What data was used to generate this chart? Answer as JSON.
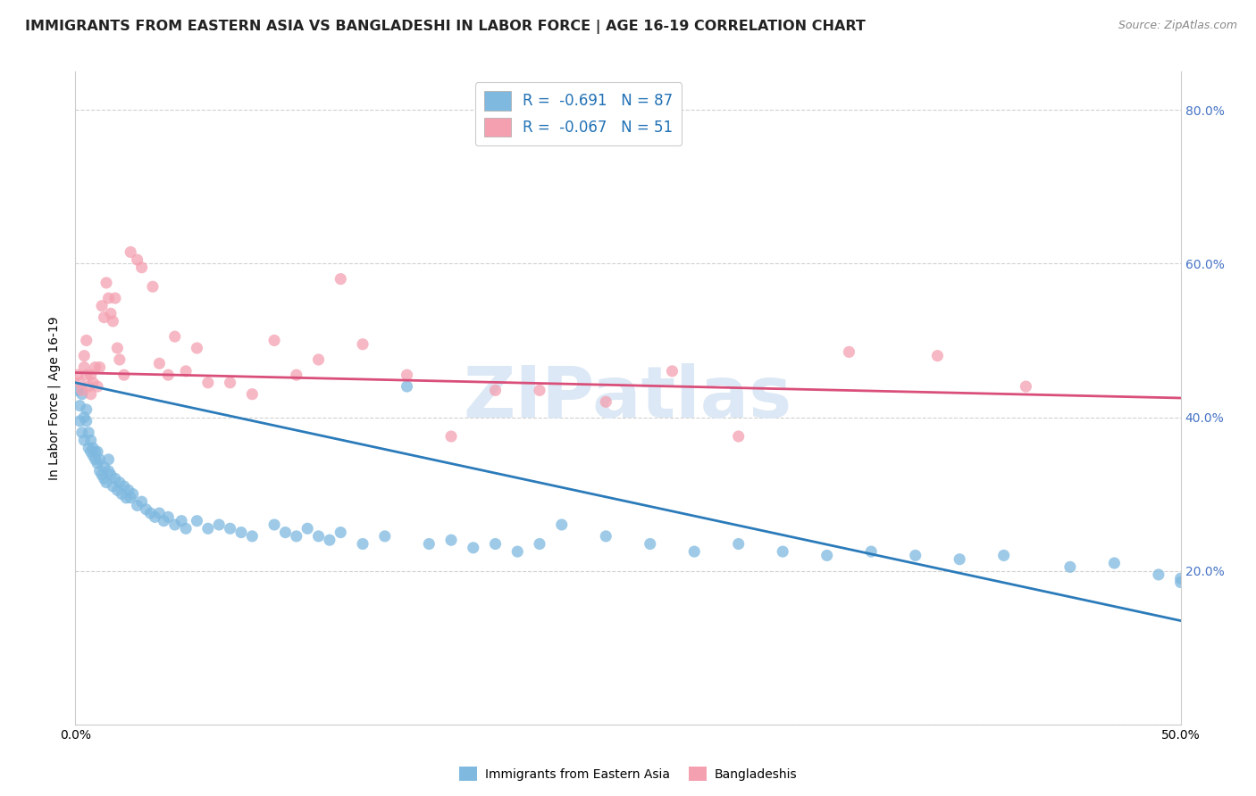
{
  "title": "IMMIGRANTS FROM EASTERN ASIA VS BANGLADESHI IN LABOR FORCE | AGE 16-19 CORRELATION CHART",
  "source": "Source: ZipAtlas.com",
  "ylabel": "In Labor Force | Age 16-19",
  "xlim": [
    0.0,
    0.5
  ],
  "ylim": [
    0.0,
    0.85
  ],
  "blue_R": -0.691,
  "blue_N": 87,
  "pink_R": -0.067,
  "pink_N": 51,
  "blue_color": "#7fb9e0",
  "pink_color": "#f4a0b0",
  "blue_line_color": "#2b7bba",
  "pink_line_color": "#d94f7a",
  "blue_line_x0": 0.0,
  "blue_line_x1": 0.5,
  "blue_line_y0": 0.445,
  "blue_line_y1": 0.135,
  "pink_line_x0": 0.0,
  "pink_line_x1": 0.5,
  "pink_line_y0": 0.458,
  "pink_line_y1": 0.425,
  "grid_color": "#cccccc",
  "background_color": "#ffffff",
  "title_fontsize": 11.5,
  "axis_label_fontsize": 10,
  "tick_fontsize": 10,
  "right_tick_color": "#4472c4",
  "watermark": "ZIPatlas",
  "watermark_color": "#dce8f5",
  "watermark_fontsize": 58,
  "legend_blue_label": "R =  -0.691   N = 87",
  "legend_pink_label": "R =  -0.067   N = 51",
  "bottom_legend_blue": "Immigrants from Eastern Asia",
  "bottom_legend_pink": "Bangladeshis",
  "blue_scatter_x": [
    0.001,
    0.002,
    0.002,
    0.003,
    0.003,
    0.004,
    0.004,
    0.005,
    0.005,
    0.006,
    0.006,
    0.007,
    0.007,
    0.008,
    0.008,
    0.009,
    0.009,
    0.01,
    0.01,
    0.011,
    0.011,
    0.012,
    0.013,
    0.013,
    0.014,
    0.015,
    0.015,
    0.016,
    0.017,
    0.018,
    0.019,
    0.02,
    0.021,
    0.022,
    0.023,
    0.024,
    0.025,
    0.026,
    0.028,
    0.03,
    0.032,
    0.034,
    0.036,
    0.038,
    0.04,
    0.042,
    0.045,
    0.048,
    0.05,
    0.055,
    0.06,
    0.065,
    0.07,
    0.075,
    0.08,
    0.09,
    0.095,
    0.1,
    0.105,
    0.11,
    0.115,
    0.12,
    0.13,
    0.14,
    0.15,
    0.16,
    0.17,
    0.18,
    0.19,
    0.2,
    0.21,
    0.22,
    0.24,
    0.26,
    0.28,
    0.3,
    0.32,
    0.34,
    0.36,
    0.38,
    0.4,
    0.42,
    0.45,
    0.47,
    0.49,
    0.5,
    0.5
  ],
  "blue_scatter_y": [
    0.435,
    0.395,
    0.415,
    0.43,
    0.38,
    0.4,
    0.37,
    0.395,
    0.41,
    0.36,
    0.38,
    0.355,
    0.37,
    0.35,
    0.36,
    0.345,
    0.355,
    0.34,
    0.355,
    0.33,
    0.345,
    0.325,
    0.335,
    0.32,
    0.315,
    0.345,
    0.33,
    0.325,
    0.31,
    0.32,
    0.305,
    0.315,
    0.3,
    0.31,
    0.295,
    0.305,
    0.295,
    0.3,
    0.285,
    0.29,
    0.28,
    0.275,
    0.27,
    0.275,
    0.265,
    0.27,
    0.26,
    0.265,
    0.255,
    0.265,
    0.255,
    0.26,
    0.255,
    0.25,
    0.245,
    0.26,
    0.25,
    0.245,
    0.255,
    0.245,
    0.24,
    0.25,
    0.235,
    0.245,
    0.44,
    0.235,
    0.24,
    0.23,
    0.235,
    0.225,
    0.235,
    0.26,
    0.245,
    0.235,
    0.225,
    0.235,
    0.225,
    0.22,
    0.225,
    0.22,
    0.215,
    0.22,
    0.205,
    0.21,
    0.195,
    0.19,
    0.185
  ],
  "pink_scatter_x": [
    0.001,
    0.002,
    0.003,
    0.004,
    0.004,
    0.005,
    0.005,
    0.006,
    0.007,
    0.007,
    0.008,
    0.009,
    0.01,
    0.011,
    0.012,
    0.013,
    0.014,
    0.015,
    0.016,
    0.017,
    0.018,
    0.019,
    0.02,
    0.022,
    0.025,
    0.028,
    0.03,
    0.035,
    0.038,
    0.042,
    0.045,
    0.05,
    0.055,
    0.06,
    0.07,
    0.08,
    0.09,
    0.1,
    0.11,
    0.12,
    0.13,
    0.15,
    0.17,
    0.19,
    0.21,
    0.24,
    0.27,
    0.3,
    0.35,
    0.39,
    0.43
  ],
  "pink_scatter_y": [
    0.455,
    0.445,
    0.435,
    0.465,
    0.48,
    0.455,
    0.5,
    0.44,
    0.455,
    0.43,
    0.445,
    0.465,
    0.44,
    0.465,
    0.545,
    0.53,
    0.575,
    0.555,
    0.535,
    0.525,
    0.555,
    0.49,
    0.475,
    0.455,
    0.615,
    0.605,
    0.595,
    0.57,
    0.47,
    0.455,
    0.505,
    0.46,
    0.49,
    0.445,
    0.445,
    0.43,
    0.5,
    0.455,
    0.475,
    0.58,
    0.495,
    0.455,
    0.375,
    0.435,
    0.435,
    0.42,
    0.46,
    0.375,
    0.485,
    0.48,
    0.44
  ]
}
